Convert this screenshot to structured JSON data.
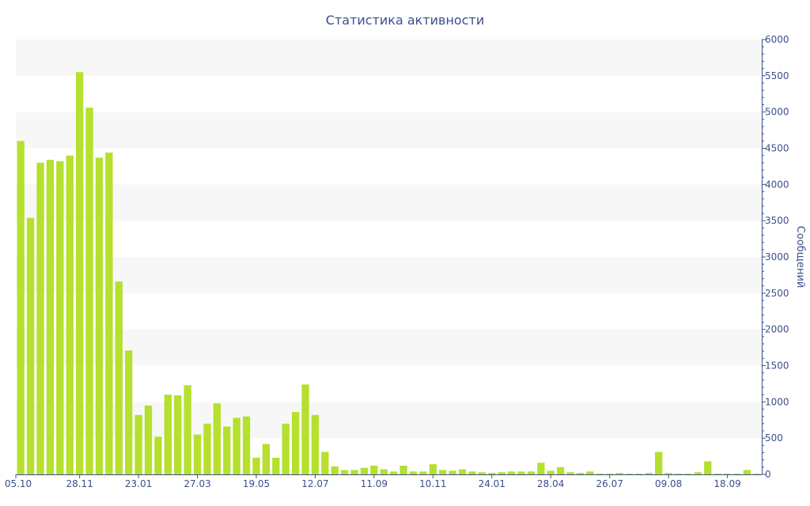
{
  "chart_data": {
    "type": "bar",
    "title": "Статистика активности",
    "ylabel": "Сообщений",
    "xlabel": "",
    "ylim": [
      0,
      6000
    ],
    "y_ticks": [
      0,
      500,
      1000,
      1500,
      2000,
      2500,
      3000,
      3500,
      4000,
      4500,
      5000,
      5500,
      6000
    ],
    "y_axis_side": "right",
    "grid": "horizontal alternating bands",
    "bar_color": "#b5e02d",
    "band_color": "#f7f7f7",
    "text_color": "#3d4f8c",
    "x_tick_labels": [
      {
        "index": 0,
        "label": "05.10"
      },
      {
        "index": 6,
        "label": "28.11"
      },
      {
        "index": 12,
        "label": "23.01"
      },
      {
        "index": 18,
        "label": "27.03"
      },
      {
        "index": 24,
        "label": "19.05"
      },
      {
        "index": 30,
        "label": "12.07"
      },
      {
        "index": 36,
        "label": "11.09"
      },
      {
        "index": 42,
        "label": "10.11"
      },
      {
        "index": 48,
        "label": "24.01"
      },
      {
        "index": 54,
        "label": "28.04"
      },
      {
        "index": 60,
        "label": "26.07"
      },
      {
        "index": 66,
        "label": "09.08"
      },
      {
        "index": 72,
        "label": "18.09"
      }
    ],
    "values": [
      4600,
      3540,
      4300,
      4340,
      4320,
      4400,
      5550,
      5060,
      4370,
      4440,
      2660,
      1710,
      820,
      950,
      520,
      1100,
      1090,
      1230,
      550,
      700,
      980,
      660,
      780,
      800,
      230,
      420,
      230,
      700,
      860,
      1240,
      820,
      310,
      110,
      60,
      60,
      90,
      120,
      70,
      40,
      120,
      40,
      40,
      140,
      60,
      50,
      70,
      40,
      30,
      20,
      30,
      40,
      40,
      40,
      160,
      50,
      100,
      30,
      20,
      40,
      10,
      10,
      20,
      10,
      10,
      20,
      310,
      20,
      10,
      10,
      30,
      180,
      10,
      10,
      10,
      60,
      10
    ]
  }
}
